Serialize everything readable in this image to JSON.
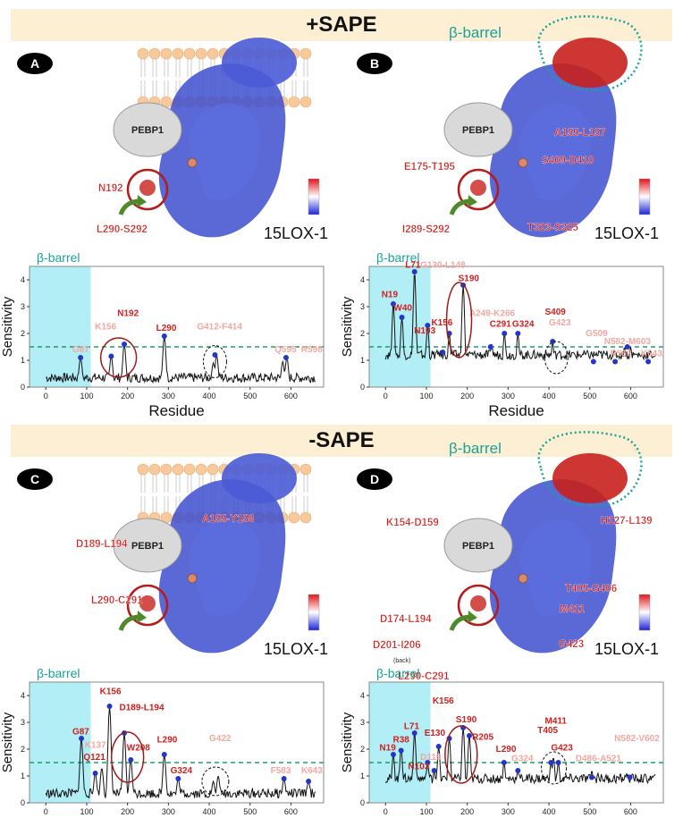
{
  "banners": {
    "top": "+SAPE",
    "bottom": "-SAPE"
  },
  "common": {
    "pebp_label": "PEBP1",
    "protein_label": "15LOX-1",
    "ylabel": "Sensitivity",
    "xlabel": "Residue",
    "barrel_label": "β-barrel",
    "colors": {
      "red": "#d0201e",
      "pink": "#f2a8a0",
      "blue": "#2336c8",
      "cyan": "#7fe3ef",
      "teal": "#1aa39a",
      "threshold": "#1e9e6a"
    }
  },
  "panels": [
    {
      "id": "A",
      "structure_labels": [
        {
          "text": "N192",
          "color": "red"
        },
        {
          "text": "L290-S292",
          "color": "red"
        }
      ],
      "structure_barrel_label": "",
      "chart_data": {
        "type": "line",
        "xlabel": "Residue",
        "ylabel": "Sensitivity",
        "xlim": [
          -40,
          680
        ],
        "ylim": [
          0,
          4.5
        ],
        "threshold": 1.5,
        "xticks": [
          0,
          100,
          200,
          300,
          400,
          500,
          600
        ],
        "yticks": [
          0,
          1,
          2,
          3,
          4
        ],
        "barrel_range": [
          -40,
          110
        ],
        "barrel_label": "β-barrel",
        "peaks": [
          [
            85,
            1.1
          ],
          [
            160,
            1.15
          ],
          [
            192,
            1.6
          ],
          [
            290,
            1.9
          ],
          [
            410,
            0.9
          ],
          [
            418,
            1.2
          ],
          [
            580,
            0.95
          ],
          [
            590,
            1.1
          ]
        ],
        "baseline": 0.35,
        "markers": [
          [
            85,
            1.1
          ],
          [
            160,
            1.15
          ],
          [
            192,
            1.6
          ],
          [
            290,
            1.9
          ],
          [
            414,
            1.2
          ],
          [
            588,
            1.1
          ]
        ],
        "labels": [
          {
            "text": "G87",
            "x": 65,
            "y": 1.3,
            "color": "pink"
          },
          {
            "text": "K156",
            "x": 120,
            "y": 2.15,
            "color": "pink"
          },
          {
            "text": "N192",
            "x": 175,
            "y": 2.65,
            "color": "red"
          },
          {
            "text": "L290",
            "x": 270,
            "y": 2.1,
            "color": "red"
          },
          {
            "text": "G412-F414",
            "x": 370,
            "y": 2.15,
            "color": "pink"
          },
          {
            "text": "Q595",
            "x": 560,
            "y": 1.3,
            "color": "pink"
          },
          {
            "text": "R598",
            "x": 625,
            "y": 1.3,
            "color": "pink"
          }
        ]
      }
    },
    {
      "id": "B",
      "structure_labels": [
        {
          "text": "A155-L157",
          "color": "red"
        },
        {
          "text": "S409-D410",
          "color": "red"
        },
        {
          "text": "E175-T195",
          "color": "red"
        },
        {
          "text": "I289-S292",
          "color": "red"
        },
        {
          "text": "T323-S325",
          "color": "red"
        }
      ],
      "structure_barrel_label": "β-barrel",
      "chart_data": {
        "type": "line",
        "xlabel": "Residue",
        "ylabel": "Sensitivity",
        "xlim": [
          -40,
          680
        ],
        "ylim": [
          0,
          4.5
        ],
        "threshold": 1.5,
        "xticks": [
          0,
          100,
          200,
          300,
          400,
          500,
          600
        ],
        "yticks": [
          0,
          1,
          2,
          3,
          4
        ],
        "barrel_range": [
          -40,
          110
        ],
        "barrel_label": "β-barrel",
        "peaks": [
          [
            19,
            3.1
          ],
          [
            40,
            2.6
          ],
          [
            71,
            4.3
          ],
          [
            103,
            2.3
          ],
          [
            130,
            1.3
          ],
          [
            156,
            2.0
          ],
          [
            190,
            3.8
          ],
          [
            260,
            1.6
          ],
          [
            291,
            2.0
          ],
          [
            324,
            2.0
          ],
          [
            409,
            1.7
          ],
          [
            423,
            1.3
          ],
          [
            509,
            1.0
          ],
          [
            562,
            1.0
          ],
          [
            585,
            1.5
          ],
          [
            600,
            1.5
          ],
          [
            643,
            1.0
          ]
        ],
        "baseline": 1.2,
        "markers": [
          [
            19,
            3.1
          ],
          [
            40,
            2.6
          ],
          [
            71,
            4.3
          ],
          [
            103,
            2.3
          ],
          [
            140,
            1.3
          ],
          [
            156,
            2.0
          ],
          [
            190,
            3.8
          ],
          [
            257,
            1.5
          ],
          [
            291,
            2.0
          ],
          [
            324,
            2.0
          ],
          [
            409,
            1.7
          ],
          [
            509,
            0.95
          ],
          [
            562,
            0.95
          ],
          [
            592,
            1.5
          ],
          [
            643,
            0.95
          ]
        ],
        "labels": [
          {
            "text": "N19",
            "x": -10,
            "y": 3.35,
            "color": "red"
          },
          {
            "text": "W40",
            "x": 20,
            "y": 2.85,
            "color": "red"
          },
          {
            "text": "L71",
            "x": 48,
            "y": 4.45,
            "color": "red"
          },
          {
            "text": "G130-L148",
            "x": 85,
            "y": 4.45,
            "color": "pink"
          },
          {
            "text": "S190",
            "x": 178,
            "y": 3.95,
            "color": "red"
          },
          {
            "text": "K156",
            "x": 112,
            "y": 2.3,
            "color": "red"
          },
          {
            "text": "N103",
            "x": 70,
            "y": 2.0,
            "color": "red"
          },
          {
            "text": "A249-K266",
            "x": 205,
            "y": 2.65,
            "color": "pink"
          },
          {
            "text": "C291",
            "x": 255,
            "y": 2.25,
            "color": "red"
          },
          {
            "text": "G324",
            "x": 310,
            "y": 2.25,
            "color": "red"
          },
          {
            "text": "S409",
            "x": 390,
            "y": 2.7,
            "color": "red"
          },
          {
            "text": "G423",
            "x": 400,
            "y": 2.3,
            "color": "pink"
          },
          {
            "text": "G509",
            "x": 490,
            "y": 1.9,
            "color": "pink"
          },
          {
            "text": "N582-M603",
            "x": 535,
            "y": 1.6,
            "color": "pink"
          },
          {
            "text": "R562",
            "x": 550,
            "y": 1.15,
            "color": "pink"
          },
          {
            "text": "K643",
            "x": 625,
            "y": 1.15,
            "color": "pink"
          }
        ]
      }
    },
    {
      "id": "C",
      "structure_labels": [
        {
          "text": "A155-Y158",
          "color": "red"
        },
        {
          "text": "D189-L194",
          "color": "red"
        },
        {
          "text": "L290-C291",
          "color": "red"
        }
      ],
      "structure_barrel_label": "",
      "chart_data": {
        "type": "line",
        "xlabel": "Residue",
        "ylabel": "Sensitivity",
        "xlim": [
          -40,
          680
        ],
        "ylim": [
          0,
          4.5
        ],
        "threshold": 1.5,
        "xticks": [
          0,
          100,
          200,
          300,
          400,
          500,
          600
        ],
        "yticks": [
          0,
          1,
          2,
          3,
          4
        ],
        "barrel_range": [
          -40,
          110
        ],
        "barrel_label": "β-barrel",
        "peaks": [
          [
            87,
            2.4
          ],
          [
            121,
            1.1
          ],
          [
            137,
            1.3
          ],
          [
            156,
            3.6
          ],
          [
            192,
            2.6
          ],
          [
            208,
            1.6
          ],
          [
            290,
            1.8
          ],
          [
            324,
            0.9
          ],
          [
            410,
            0.8
          ],
          [
            422,
            1.0
          ],
          [
            583,
            0.9
          ],
          [
            643,
            0.8
          ]
        ],
        "baseline": 0.35,
        "markers": [
          [
            87,
            2.4
          ],
          [
            121,
            1.1
          ],
          [
            156,
            3.6
          ],
          [
            192,
            2.6
          ],
          [
            208,
            1.6
          ],
          [
            290,
            1.8
          ],
          [
            324,
            0.9
          ],
          [
            583,
            0.9
          ],
          [
            643,
            0.8
          ]
        ],
        "labels": [
          {
            "text": "G87",
            "x": 65,
            "y": 2.55,
            "color": "red"
          },
          {
            "text": "K137",
            "x": 95,
            "y": 2.05,
            "color": "pink"
          },
          {
            "text": "Q121",
            "x": 92,
            "y": 1.6,
            "color": "red"
          },
          {
            "text": "K156",
            "x": 132,
            "y": 4.05,
            "color": "red"
          },
          {
            "text": "D189-L194",
            "x": 180,
            "y": 3.45,
            "color": "red"
          },
          {
            "text": "W208",
            "x": 198,
            "y": 1.95,
            "color": "red"
          },
          {
            "text": "L290",
            "x": 272,
            "y": 2.25,
            "color": "red"
          },
          {
            "text": "G324",
            "x": 305,
            "y": 1.1,
            "color": "red"
          },
          {
            "text": "G422",
            "x": 400,
            "y": 2.3,
            "color": "pink"
          },
          {
            "text": "F583",
            "x": 550,
            "y": 1.1,
            "color": "pink"
          },
          {
            "text": "K643",
            "x": 625,
            "y": 1.1,
            "color": "pink"
          }
        ]
      }
    },
    {
      "id": "D",
      "structure_labels": [
        {
          "text": "K154-D159",
          "color": "red"
        },
        {
          "text": "H127-L139",
          "color": "red"
        },
        {
          "text": "T405-G406",
          "color": "red"
        },
        {
          "text": "M411",
          "color": "red"
        },
        {
          "text": "G423",
          "color": "red"
        },
        {
          "text": "D174-L194",
          "color": "red"
        },
        {
          "text": "D201-I206",
          "color": "red"
        },
        {
          "text": "(back)",
          "color": "dark"
        },
        {
          "text": "L290-C291",
          "color": "red"
        }
      ],
      "structure_barrel_label": "β-barrel",
      "chart_data": {
        "type": "line",
        "xlabel": "Residue",
        "ylabel": "Sensitivity",
        "xlim": [
          -40,
          680
        ],
        "ylim": [
          0,
          4.5
        ],
        "threshold": 1.5,
        "xticks": [
          0,
          100,
          200,
          300,
          400,
          500,
          600
        ],
        "yticks": [
          0,
          1,
          2,
          3,
          4
        ],
        "barrel_range": [
          -40,
          110
        ],
        "barrel_label": "β-barrel",
        "peaks": [
          [
            19,
            1.8
          ],
          [
            38,
            2.0
          ],
          [
            71,
            2.6
          ],
          [
            103,
            1.5
          ],
          [
            119,
            1.2
          ],
          [
            130,
            2.1
          ],
          [
            156,
            2.4
          ],
          [
            190,
            2.8
          ],
          [
            205,
            2.5
          ],
          [
            290,
            1.5
          ],
          [
            324,
            1.2
          ],
          [
            405,
            1.5
          ],
          [
            411,
            1.7
          ],
          [
            423,
            1.5
          ],
          [
            505,
            1.2
          ],
          [
            520,
            1.1
          ],
          [
            590,
            1.1
          ],
          [
            602,
            1.0
          ]
        ],
        "baseline": 0.9,
        "markers": [
          [
            19,
            1.8
          ],
          [
            38,
            1.95
          ],
          [
            71,
            2.6
          ],
          [
            103,
            1.5
          ],
          [
            119,
            1.2
          ],
          [
            130,
            2.1
          ],
          [
            156,
            2.4
          ],
          [
            190,
            2.8
          ],
          [
            205,
            2.5
          ],
          [
            290,
            1.5
          ],
          [
            324,
            1.2
          ],
          [
            405,
            1.5
          ],
          [
            423,
            1.5
          ],
          [
            505,
            0.95
          ],
          [
            598,
            0.95
          ]
        ],
        "labels": [
          {
            "text": "N19",
            "x": -15,
            "y": 1.95,
            "color": "red"
          },
          {
            "text": "R38",
            "x": 18,
            "y": 2.25,
            "color": "red"
          },
          {
            "text": "L71",
            "x": 45,
            "y": 2.75,
            "color": "red"
          },
          {
            "text": "K156",
            "x": 115,
            "y": 3.7,
            "color": "red"
          },
          {
            "text": "E130",
            "x": 95,
            "y": 2.5,
            "color": "red"
          },
          {
            "text": "S190",
            "x": 172,
            "y": 3.0,
            "color": "red"
          },
          {
            "text": "D119",
            "x": 85,
            "y": 1.6,
            "color": "pink"
          },
          {
            "text": "N103",
            "x": 55,
            "y": 1.25,
            "color": "red"
          },
          {
            "text": "R205",
            "x": 212,
            "y": 2.35,
            "color": "red"
          },
          {
            "text": "L290",
            "x": 270,
            "y": 1.9,
            "color": "red"
          },
          {
            "text": "G324",
            "x": 308,
            "y": 1.55,
            "color": "pink"
          },
          {
            "text": "M411",
            "x": 390,
            "y": 2.95,
            "color": "red"
          },
          {
            "text": "T405",
            "x": 372,
            "y": 2.6,
            "color": "red"
          },
          {
            "text": "G423",
            "x": 405,
            "y": 1.95,
            "color": "red"
          },
          {
            "text": "D486-A521",
            "x": 465,
            "y": 1.55,
            "color": "pink"
          },
          {
            "text": "N582-V602",
            "x": 560,
            "y": 2.3,
            "color": "pink"
          }
        ]
      }
    }
  ]
}
